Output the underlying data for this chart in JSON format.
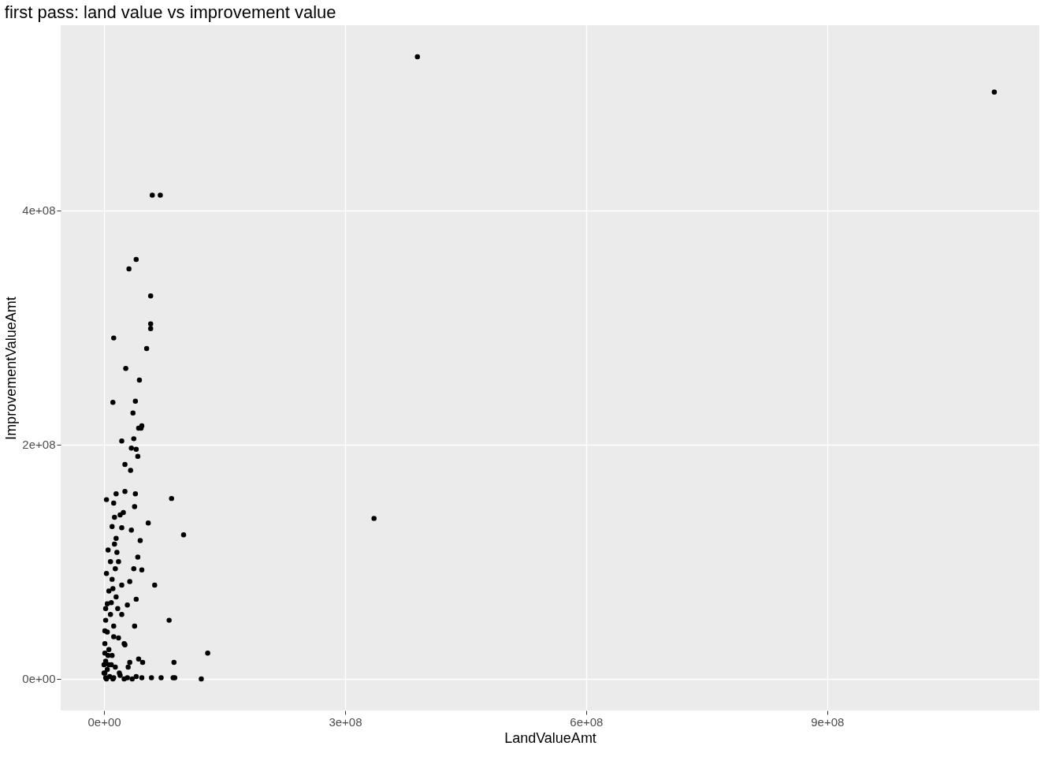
{
  "chart_data": {
    "type": "scatter",
    "title": "first pass: land value vs improvement value",
    "xlabel": "LandValueAmt",
    "ylabel": "ImprovementValueAmt",
    "x": [
      390000000.0,
      1108000000.0,
      336000000.0,
      60000000.0,
      70000000.0,
      40000000.0,
      31000000.0,
      58000000.0,
      58000000.0,
      58000000.0,
      12000000.0,
      53000000.0,
      27000000.0,
      44000000.0,
      11000000.0,
      39000000.0,
      36000000.0,
      47000000.0,
      43000000.0,
      46000000.0,
      37000000.0,
      22000000.0,
      34000000.0,
      40000000.0,
      42000000.0,
      26000000.0,
      33000000.0,
      15000000.0,
      26000000.0,
      39000000.0,
      3000000.0,
      12000000.0,
      84000000.0,
      38000000.0,
      13000000.0,
      24000000.0,
      55000000.0,
      99000000.0,
      34000000.0,
      45000000.0,
      22000000.0,
      42000000.0,
      16000000.0,
      47000000.0,
      37000000.0,
      63000000.0,
      14000000.0,
      32000000.0,
      11000000.0,
      40000000.0,
      4000000.0,
      29000000.0,
      22000000.0,
      81000000.0,
      38000000.0,
      1000000.0,
      12000000.0,
      26000000.0,
      129000000.0,
      1000000.0,
      87000000.0,
      43000000.0,
      48000000.0,
      32000000.0,
      9000000.0,
      19000000.0,
      2000000.0,
      47000000.0,
      59000000.0,
      71000000.0,
      86000000.0,
      88000000.0,
      121000000.0,
      0,
      29000000.0,
      12000000.0,
      6000000.0,
      5000000.0,
      8000000.0,
      3000000.0,
      10000000.0,
      6000000.0,
      15000000.0,
      2000000.0,
      8000000.0,
      12000000.0,
      4000000.0,
      18000000.0,
      1000000.0,
      6000000.0,
      10000000.0,
      2000000.0,
      14000000.0,
      4000000.0,
      1000000.0,
      20000000.0,
      7000000.0,
      3000000.0,
      25000000.0,
      35000000.0,
      15000000.0,
      10000000.0,
      20000000.0,
      18000000.0,
      22000000.0,
      17000000.0,
      25000000.0,
      30000000.0,
      2000000.0,
      9000000.0,
      13000000.0,
      5000000.0,
      0,
      11000000.0,
      40000000.0
    ],
    "values": [
      531000000.0,
      501000000.0,
      137000000.0,
      413000000.0,
      413000000.0,
      358000000.0,
      350000000.0,
      327000000.0,
      303000000.0,
      299000000.0,
      291000000.0,
      282000000.0,
      265000000.0,
      255000000.0,
      236000000.0,
      237000000.0,
      227000000.0,
      216000000.0,
      214000000.0,
      214000000.0,
      205000000.0,
      203000000.0,
      197000000.0,
      196000000.0,
      190000000.0,
      183000000.0,
      178000000.0,
      158000000.0,
      160000000.0,
      158000000.0,
      153000000.0,
      150000000.0,
      154000000.0,
      147000000.0,
      138000000.0,
      142000000.0,
      133000000.0,
      123000000.0,
      127000000.0,
      118000000.0,
      129000000.0,
      104000000.0,
      108000000.0,
      93000000.0,
      94000000.0,
      80000000.0,
      94000000.0,
      83000000.0,
      77000000.0,
      68000000.0,
      64000000.0,
      63000000.0,
      55000000.0,
      50000000.0,
      45000000.0,
      41000000.0,
      36000000.0,
      29000000.0,
      22000000.0,
      22000000.0,
      14000000.0,
      17000000.0,
      14000000.0,
      14000000.0,
      12000000.0,
      5000000.0,
      1000000.0,
      1000000.0,
      1000000.0,
      1000000.0,
      1000000.0,
      1000000.0,
      0,
      5000000.0,
      1000000.0,
      1000000.0,
      12000000.0,
      110000000.0,
      100000000.0,
      90000000.0,
      85000000.0,
      75000000.0,
      70000000.0,
      60000000.0,
      55000000.0,
      45000000.0,
      40000000.0,
      35000000.0,
      30000000.0,
      25000000.0,
      20000000.0,
      15000000.0,
      10000000.0,
      8000000.0,
      5000000.0,
      3000000.0,
      2000000.0,
      0,
      0,
      0,
      120000000.0,
      130000000.0,
      140000000.0,
      100000000.0,
      80000000.0,
      60000000.0,
      30000000.0,
      10000000.0,
      50000000.0,
      65000000.0,
      115000000.0,
      20000000.0,
      12000000.0,
      0,
      2000000.0
    ],
    "color": "#000000",
    "marker": "circle",
    "grid": true,
    "xlim": [
      -54000000.0,
      1164000000.0
    ],
    "ylim": [
      -27000000.0,
      558000000.0
    ],
    "xticks": [
      {
        "value": 0,
        "label": "0e+00"
      },
      {
        "value": 300000000,
        "label": "3e+08"
      },
      {
        "value": 600000000,
        "label": "6e+08"
      },
      {
        "value": 900000000,
        "label": "9e+08"
      }
    ],
    "yticks": [
      {
        "value": 0,
        "label": "0e+00"
      },
      {
        "value": 200000000,
        "label": "2e+08"
      },
      {
        "value": 400000000,
        "label": "4e+08"
      }
    ]
  }
}
